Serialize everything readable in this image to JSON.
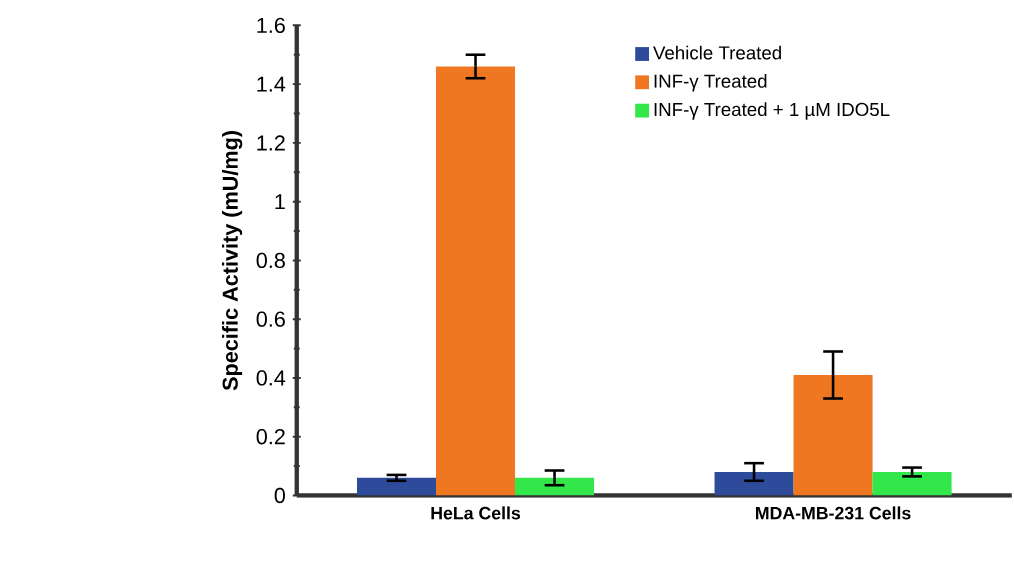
{
  "chart_data": {
    "type": "bar",
    "ylabel": "Specific Activity (mU/mg)",
    "categories": [
      "HeLa Cells",
      "MDA-MB-231 Cells"
    ],
    "series": [
      {
        "name": "Vehicle Treated",
        "color": "#2e4a9a",
        "values": [
          0.06,
          0.08
        ],
        "errors": [
          0.01,
          0.03
        ]
      },
      {
        "name": "INF-γ Treated",
        "color": "#f07722",
        "values": [
          1.46,
          0.41
        ],
        "errors": [
          0.04,
          0.08
        ]
      },
      {
        "name": "INF-γ Treated + 1 µM IDO5L",
        "color": "#33e64a",
        "values": [
          0.06,
          0.08
        ],
        "errors": [
          0.025,
          0.015
        ]
      }
    ],
    "ylim": [
      0,
      1.6
    ],
    "yticks": [
      0,
      0.2,
      0.4,
      0.6,
      0.8,
      1,
      1.2,
      1.4,
      1.6
    ],
    "grid": false,
    "legend": "top right"
  }
}
